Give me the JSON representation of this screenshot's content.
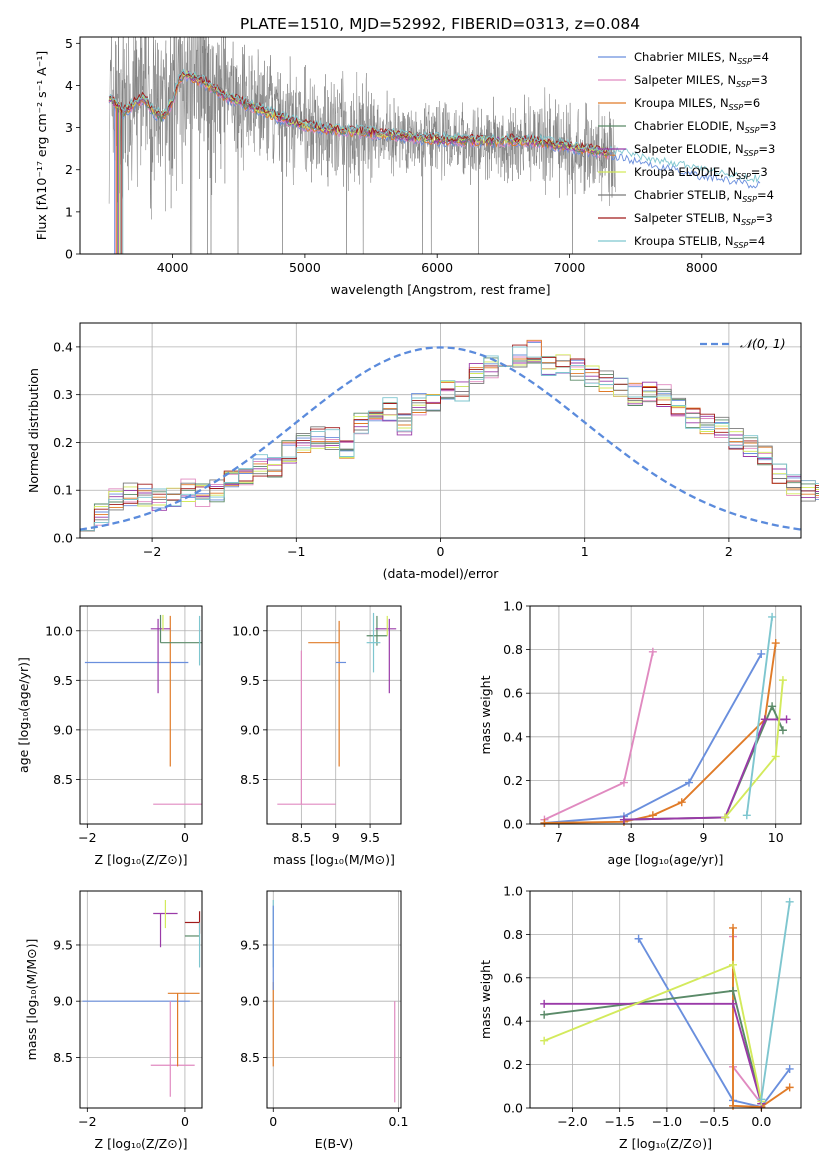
{
  "figure": {
    "title": "PLATE=1510, MJD=52992, FIBERID=0313, z=0.084"
  },
  "palette": {
    "chabrier_miles": "#6a8fdd",
    "salpeter_miles": "#e08ac0",
    "kroupa_miles": "#e07b28",
    "chabrier_elodie": "#5a8a68",
    "salpeter_elodie": "#9a3aa8",
    "kroupa_elodie": "#d3ea5c",
    "chabrier_stelib": "#7a7a7a",
    "salpeter_stelib": "#a01a1a",
    "kroupa_stelib": "#7ec6cf",
    "data": "#808080",
    "normal": "#5b8bdc"
  },
  "chart_data": [
    {
      "type": "line",
      "id": "spectrum",
      "xlabel": "wavelength [Angstrom, rest frame]",
      "ylabel": "Flux [fλ10⁻¹⁷ erg cm⁻² s⁻¹ A⁻¹]",
      "xlim": [
        3300,
        8750
      ],
      "ylim": [
        0,
        5.15
      ],
      "xticks": [
        4000,
        5000,
        6000,
        7000,
        8000
      ],
      "yticks": [
        0,
        1,
        2,
        3,
        4,
        5
      ],
      "legend_position": "top-right",
      "legend": [
        {
          "label": "Chabrier MILES, N",
          "sub": "SSP",
          "suffix": "=4",
          "color": "chabrier_miles"
        },
        {
          "label": "Salpeter MILES, N",
          "sub": "SSP",
          "suffix": "=3",
          "color": "salpeter_miles"
        },
        {
          "label": "Kroupa MILES, N",
          "sub": "SSP",
          "suffix": "=6",
          "color": "kroupa_miles"
        },
        {
          "label": "Chabrier ELODIE, N",
          "sub": "SSP",
          "suffix": "=3",
          "color": "chabrier_elodie"
        },
        {
          "label": "Salpeter ELODIE, N",
          "sub": "SSP",
          "suffix": "=3",
          "color": "salpeter_elodie"
        },
        {
          "label": "Kroupa ELODIE, N",
          "sub": "SSP",
          "suffix": "=3",
          "color": "kroupa_elodie"
        },
        {
          "label": "Chabrier STELIB, N",
          "sub": "SSP",
          "suffix": "=4",
          "color": "chabrier_stelib"
        },
        {
          "label": "Salpeter STELIB, N",
          "sub": "SSP",
          "suffix": "=3",
          "color": "salpeter_stelib"
        },
        {
          "label": "Kroupa STELIB, N",
          "sub": "SSP",
          "suffix": "=4",
          "color": "kroupa_stelib"
        }
      ],
      "model_continuum": {
        "x": [
          3520,
          3560,
          3620,
          3700,
          3780,
          3850,
          3920,
          4000,
          4050,
          4120,
          4250,
          4400,
          4600,
          4800,
          5000,
          5200,
          5400,
          5600,
          5800,
          6000,
          6200,
          6400,
          6600,
          6800,
          7000,
          7200,
          7400,
          7600,
          7800,
          8000,
          8200,
          8400
        ],
        "y": [
          3.75,
          3.6,
          3.35,
          3.55,
          3.7,
          3.4,
          3.25,
          3.6,
          4.2,
          4.25,
          4.05,
          3.75,
          3.5,
          3.25,
          3.05,
          2.95,
          2.9,
          2.85,
          2.78,
          2.72,
          2.7,
          2.68,
          2.7,
          2.65,
          2.55,
          2.45,
          2.35,
          2.2,
          2.08,
          1.92,
          1.82,
          1.72
        ]
      },
      "data_range": [
        3520,
        7350
      ]
    },
    {
      "type": "histogram",
      "id": "residuals",
      "xlabel": "(data-model)/error",
      "ylabel": "Normed distribution",
      "xlim": [
        -2.5,
        2.5
      ],
      "ylim": [
        0,
        0.45
      ],
      "xticks": [
        -2,
        -1,
        0,
        1,
        2
      ],
      "yticks": [
        0.0,
        0.1,
        0.2,
        0.3,
        0.4
      ],
      "bin_width": 0.1,
      "normal_label": "𝒩(0, 1)",
      "legend_position": "top-right",
      "envelope": [
        0.04,
        0.05,
        0.08,
        0.09,
        0.09,
        0.08,
        0.09,
        0.1,
        0.09,
        0.1,
        0.13,
        0.13,
        0.15,
        0.15,
        0.18,
        0.2,
        0.21,
        0.21,
        0.19,
        0.24,
        0.27,
        0.27,
        0.24,
        0.28,
        0.29,
        0.31,
        0.31,
        0.34,
        0.36,
        0.35,
        0.38,
        0.39,
        0.36,
        0.37,
        0.35,
        0.34,
        0.33,
        0.31,
        0.3,
        0.31,
        0.3,
        0.28,
        0.25,
        0.24,
        0.23,
        0.21,
        0.19,
        0.17,
        0.13,
        0.11,
        0.1,
        0.09,
        0.09,
        0.07,
        0.08,
        0.08,
        0.07,
        0.06,
        0.05,
        0.04
      ]
    },
    {
      "type": "errorbar",
      "id": "age-vs-Z",
      "xlabel": "Z [log₁₀(Z/Z⊙)]",
      "ylabel": "age  [log₁₀(age/yr)]",
      "xlim": [
        -2.15,
        0.35
      ],
      "ylim": [
        8.05,
        10.25
      ],
      "xticks": [
        -2,
        0
      ],
      "xticklabels": [
        "−2",
        "0"
      ],
      "yticks": [
        8.5,
        9.0,
        9.5,
        10.0
      ],
      "points": [
        {
          "x": -0.8,
          "y": 9.68,
          "xerr": [
            1.25,
            0.87
          ],
          "yerr": [
            0.0,
            0.0
          ],
          "color": "chabrier_miles"
        },
        {
          "x": -0.3,
          "y": 8.25,
          "xerr": [
            0.35,
            0.65
          ],
          "yerr": [
            0.0,
            0.0
          ],
          "color": "salpeter_miles"
        },
        {
          "x": -0.3,
          "y": 9.88,
          "xerr": [
            0.0,
            0.0
          ],
          "yerr": [
            1.25,
            0.27
          ],
          "color": "kroupa_miles"
        },
        {
          "x": -0.5,
          "y": 9.88,
          "xerr": [
            0.0,
            0.85
          ],
          "yerr": [
            0.0,
            0.28
          ],
          "color": "chabrier_elodie"
        },
        {
          "x": -0.55,
          "y": 10.02,
          "xerr": [
            0.15,
            0.25
          ],
          "yerr": [
            0.65,
            0.1
          ],
          "color": "salpeter_elodie"
        },
        {
          "x": -0.45,
          "y": 10.08,
          "xerr": [
            0.0,
            0.0
          ],
          "yerr": [
            0.08,
            0.08
          ],
          "color": "kroupa_elodie"
        },
        {
          "x": 0.3,
          "y": 9.9,
          "xerr": [
            0.0,
            0.0
          ],
          "yerr": [
            0.25,
            0.25
          ],
          "color": "kroupa_stelib"
        }
      ]
    },
    {
      "type": "errorbar",
      "id": "age-vs-mass",
      "xlabel": "mass [log₁₀(M/M⊙)]",
      "ylabel": "",
      "xlim": [
        8.0,
        9.95
      ],
      "ylim": [
        8.05,
        10.25
      ],
      "xticks": [
        8.5,
        9.0,
        9.5
      ],
      "yticks": [
        8.5,
        9.0,
        9.5,
        10.0
      ],
      "points": [
        {
          "x": 8.5,
          "y": 8.25,
          "xerr": [
            0.35,
            0.5
          ],
          "yerr": [
            0.0,
            1.55
          ],
          "color": "salpeter_miles"
        },
        {
          "x": 9.05,
          "y": 9.88,
          "xerr": [
            0.45,
            0.0
          ],
          "yerr": [
            1.25,
            0.22
          ],
          "color": "kroupa_miles"
        },
        {
          "x": 9.0,
          "y": 9.68,
          "xerr": [
            0.0,
            0.15
          ],
          "yerr": [
            0.0,
            0.0
          ],
          "color": "chabrier_miles"
        },
        {
          "x": 9.6,
          "y": 9.95,
          "xerr": [
            0.15,
            0.15
          ],
          "yerr": [
            0.1,
            0.2
          ],
          "color": "chabrier_elodie"
        },
        {
          "x": 9.78,
          "y": 10.02,
          "xerr": [
            0.2,
            0.1
          ],
          "yerr": [
            0.65,
            0.1
          ],
          "color": "salpeter_elodie"
        },
        {
          "x": 9.75,
          "y": 10.05,
          "xerr": [
            0.0,
            0.0
          ],
          "yerr": [
            0.1,
            0.1
          ],
          "color": "kroupa_elodie"
        },
        {
          "x": 9.55,
          "y": 9.88,
          "xerr": [
            0.1,
            0.1
          ],
          "yerr": [
            0.3,
            0.3
          ],
          "color": "kroupa_stelib"
        }
      ]
    },
    {
      "type": "line",
      "id": "massweight-vs-age",
      "xlabel": "age  [log₁₀(age/yr)]",
      "ylabel": "mass weight",
      "xlim": [
        6.6,
        10.35
      ],
      "ylim": [
        0,
        1.0
      ],
      "xticks": [
        7,
        8,
        9,
        10
      ],
      "yticks": [
        0.0,
        0.2,
        0.4,
        0.6,
        0.8,
        1.0
      ],
      "series": [
        {
          "color": "chabrier_miles",
          "x": [
            6.8,
            7.9,
            8.8,
            9.8
          ],
          "y": [
            0.005,
            0.035,
            0.19,
            0.78
          ]
        },
        {
          "color": "salpeter_miles",
          "x": [
            6.8,
            7.9,
            8.3
          ],
          "y": [
            0.02,
            0.19,
            0.79
          ]
        },
        {
          "color": "kroupa_miles",
          "x": [
            6.8,
            7.9,
            8.3,
            8.7,
            9.85,
            10.0
          ],
          "y": [
            0.005,
            0.01,
            0.04,
            0.1,
            0.48,
            0.83
          ]
        },
        {
          "color": "chabrier_elodie",
          "x": [
            7.9,
            9.3,
            9.95,
            10.1
          ],
          "y": [
            0.02,
            0.03,
            0.54,
            0.43
          ]
        },
        {
          "color": "salpeter_elodie",
          "x": [
            7.9,
            9.3,
            9.85,
            10.15
          ],
          "y": [
            0.02,
            0.03,
            0.48,
            0.48
          ]
        },
        {
          "color": "kroupa_elodie",
          "x": [
            9.3,
            10.0,
            10.1
          ],
          "y": [
            0.03,
            0.31,
            0.66
          ]
        },
        {
          "color": "kroupa_stelib",
          "x": [
            9.6,
            9.95
          ],
          "y": [
            0.04,
            0.95
          ]
        }
      ]
    },
    {
      "type": "errorbar",
      "id": "mass-vs-Z",
      "xlabel": "Z [log₁₀(Z/Z⊙)]",
      "ylabel": "mass [log₁₀(M/M⊙)]",
      "xlim": [
        -2.15,
        0.35
      ],
      "ylim": [
        8.05,
        9.98
      ],
      "xticks": [
        -2,
        0
      ],
      "xticklabels": [
        "−2",
        "0"
      ],
      "yticks": [
        8.5,
        9.0,
        9.5
      ],
      "points": [
        {
          "x": -0.8,
          "y": 9.0,
          "xerr": [
            1.3,
            0.9
          ],
          "yerr": [
            0.0,
            0.0
          ],
          "color": "chabrier_miles"
        },
        {
          "x": -0.3,
          "y": 8.43,
          "xerr": [
            0.4,
            0.5
          ],
          "yerr": [
            0.0,
            0.0
          ],
          "color": "salpeter_miles"
        },
        {
          "x": -0.3,
          "y": 8.5,
          "xerr": [
            0.0,
            0.0
          ],
          "yerr": [
            0.35,
            0.5
          ],
          "color": "salpeter_miles"
        },
        {
          "x": -0.15,
          "y": 9.07,
          "xerr": [
            0.2,
            0.45
          ],
          "yerr": [
            0.65,
            0.0
          ],
          "color": "kroupa_miles"
        },
        {
          "x": 0.0,
          "y": 9.58,
          "xerr": [
            0.0,
            0.3
          ],
          "yerr": [
            0.0,
            0.0
          ],
          "color": "chabrier_elodie"
        },
        {
          "x": -0.5,
          "y": 9.78,
          "xerr": [
            0.15,
            0.35
          ],
          "yerr": [
            0.3,
            0.0
          ],
          "color": "salpeter_elodie"
        },
        {
          "x": -0.4,
          "y": 9.8,
          "xerr": [
            0.0,
            0.0
          ],
          "yerr": [
            0.15,
            0.1
          ],
          "color": "kroupa_elodie"
        },
        {
          "x": 0.3,
          "y": 9.7,
          "xerr": [
            0.3,
            0.0
          ],
          "yerr": [
            0.1,
            0.1
          ],
          "color": "salpeter_stelib"
        },
        {
          "x": 0.3,
          "y": 9.6,
          "xerr": [
            0.0,
            0.0
          ],
          "yerr": [
            0.3,
            0.1
          ],
          "color": "kroupa_stelib"
        }
      ]
    },
    {
      "type": "errorbar",
      "id": "mass-vs-EBV",
      "xlabel": "E(B-V)",
      "ylabel": "",
      "xlim": [
        -0.005,
        0.102
      ],
      "ylim": [
        8.05,
        9.98
      ],
      "xticks": [
        0.0,
        0.1
      ],
      "yticks": [
        8.5,
        9.0,
        9.5
      ],
      "points": [
        {
          "x": 0.0,
          "y": 9.07,
          "xerr": [
            0.0,
            0.0
          ],
          "yerr": [
            0.65,
            0.1
          ],
          "color": "kroupa_miles"
        },
        {
          "x": 0.0,
          "y": 9.8,
          "xerr": [
            0.0,
            0.0
          ],
          "yerr": [
            0.5,
            0.1
          ],
          "color": "kroupa_stelib"
        },
        {
          "x": 0.0,
          "y": 9.7,
          "xerr": [
            0.0,
            0.0
          ],
          "yerr": [
            0.6,
            0.15
          ],
          "color": "chabrier_miles"
        },
        {
          "x": 0.097,
          "y": 8.5,
          "xerr": [
            0.0,
            0.0
          ],
          "yerr": [
            0.4,
            0.5
          ],
          "color": "salpeter_miles"
        }
      ]
    },
    {
      "type": "line",
      "id": "massweight-vs-Z",
      "xlabel": "Z [log₁₀(Z/Z⊙)]",
      "ylabel": "mass weight",
      "xlim": [
        -2.45,
        0.42
      ],
      "ylim": [
        0,
        1.0
      ],
      "xticks": [
        -2.0,
        -1.5,
        -1.0,
        -0.5,
        0.0
      ],
      "xticklabels": [
        "−2.0",
        "−1.5",
        "−1.0",
        "−0.5",
        "0.0"
      ],
      "yticks": [
        0.0,
        0.2,
        0.4,
        0.6,
        0.8,
        1.0
      ],
      "series": [
        {
          "color": "chabrier_miles",
          "x": [
            -1.3,
            -0.3,
            0.0,
            0.3
          ],
          "y": [
            0.78,
            0.035,
            0.005,
            0.18
          ]
        },
        {
          "color": "salpeter_miles",
          "x": [
            -0.3,
            -0.3,
            0.0
          ],
          "y": [
            0.79,
            0.19,
            0.02
          ]
        },
        {
          "color": "kroupa_miles",
          "x": [
            -0.3,
            -0.3,
            -0.3,
            0.0,
            0.3
          ],
          "y": [
            0.83,
            0.48,
            0.01,
            0.005,
            0.095
          ]
        },
        {
          "color": "chabrier_elodie",
          "x": [
            -2.3,
            -0.3,
            0.0
          ],
          "y": [
            0.43,
            0.54,
            0.02
          ]
        },
        {
          "color": "salpeter_elodie",
          "x": [
            -2.3,
            -0.3,
            0.0
          ],
          "y": [
            0.48,
            0.48,
            0.02
          ]
        },
        {
          "color": "kroupa_elodie",
          "x": [
            -2.3,
            -0.3,
            0.0
          ],
          "y": [
            0.31,
            0.66,
            0.03
          ]
        },
        {
          "color": "kroupa_stelib",
          "x": [
            0.0,
            0.3
          ],
          "y": [
            0.04,
            0.95
          ]
        }
      ]
    }
  ]
}
